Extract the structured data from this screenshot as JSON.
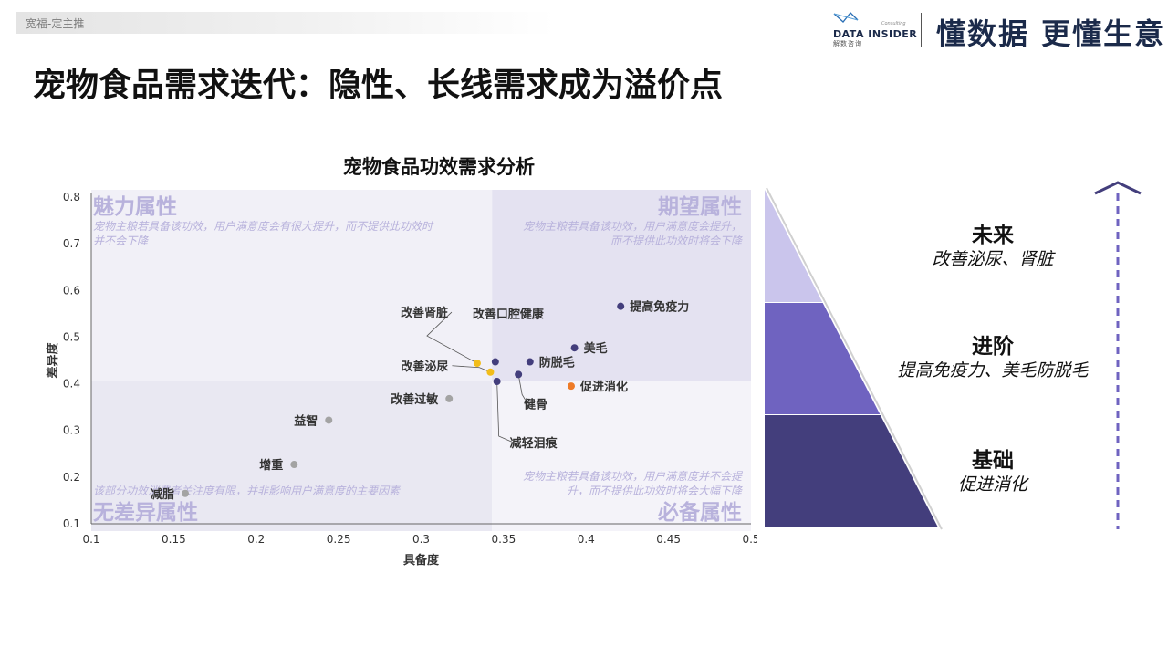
{
  "header": {
    "tag": "宽福-定主推",
    "logo_name": "DATA INSIDER",
    "logo_sub": "解数咨询",
    "logo_consult": "Consulting",
    "slogan": "懂数据 更懂生意",
    "title": "宠物食品需求迭代：隐性、长线需求成为溢价点"
  },
  "colors": {
    "purple_dark": "#433e7c",
    "purple_mid": "#6f63c0",
    "purple_light": "#cac5ec",
    "yellow": "#f2bd1a",
    "orange": "#ee7b27",
    "gray": "#a3a3a3",
    "quad_text": "#b8b2dc"
  },
  "chart_data": {
    "type": "scatter",
    "title": "宠物食品功效需求分析",
    "xlabel": "具备度",
    "ylabel": "差异度",
    "xlim": [
      0.1,
      0.5
    ],
    "ylim": [
      0.1,
      0.8
    ],
    "xticks": [
      "0.1",
      "0.15",
      "0.2",
      "0.25",
      "0.3",
      "0.35",
      "0.4",
      "0.45",
      "0.5"
    ],
    "yticks": [
      "0.1",
      "0.2",
      "0.3",
      "0.4",
      "0.5",
      "0.6",
      "0.7",
      "0.8"
    ],
    "quadrants": [
      {
        "name": "魅力属性",
        "desc1": "宠物主粮若具备该功效，用户满意度会有很大提升，而不提供此功效时",
        "desc2": "并不会下降"
      },
      {
        "name": "期望属性",
        "desc1": "宠物主粮若具备该功效，用户满意度会提升，",
        "desc2": "而不提供此功效时将会下降"
      },
      {
        "name": "无差异属性",
        "desc1": "该部分功效消费者关注度有限，并非影响用户满意度的主要因素",
        "desc2": ""
      },
      {
        "name": "必备属性",
        "desc1": "宠物主粮若具备该功效，用户满意度并不会提",
        "desc2": "升，而不提供此功效时将会大幅下降"
      }
    ],
    "points": [
      {
        "label": "提高免疫力",
        "x": 0.421,
        "y": 0.566,
        "group": "dark"
      },
      {
        "label": "美毛",
        "x": 0.393,
        "y": 0.477,
        "group": "dark"
      },
      {
        "label": "防脱毛",
        "x": 0.366,
        "y": 0.447,
        "group": "dark"
      },
      {
        "label": "改善口腔健康",
        "x": 0.345,
        "y": 0.447,
        "group": "dark"
      },
      {
        "label": "健骨",
        "x": 0.359,
        "y": 0.42,
        "group": "dark"
      },
      {
        "label": "减轻泪痕",
        "x": 0.346,
        "y": 0.405,
        "group": "dark"
      },
      {
        "label": "促进消化",
        "x": 0.391,
        "y": 0.395,
        "group": "orange"
      },
      {
        "label": "改善肾脏",
        "x": 0.334,
        "y": 0.444,
        "group": "yellow"
      },
      {
        "label": "改善泌尿",
        "x": 0.342,
        "y": 0.425,
        "group": "yellow"
      },
      {
        "label": "改善过敏",
        "x": 0.317,
        "y": 0.368,
        "group": "gray"
      },
      {
        "label": "益智",
        "x": 0.244,
        "y": 0.322,
        "group": "gray"
      },
      {
        "label": "增重",
        "x": 0.223,
        "y": 0.227,
        "group": "gray"
      },
      {
        "label": "减脂",
        "x": 0.157,
        "y": 0.165,
        "group": "gray"
      }
    ]
  },
  "pyramid": [
    {
      "level": "未来",
      "items": "改善泌尿、肾脏"
    },
    {
      "level": "进阶",
      "items": "提高免疫力、美毛防脱毛"
    },
    {
      "level": "基础",
      "items": "促进消化"
    }
  ]
}
